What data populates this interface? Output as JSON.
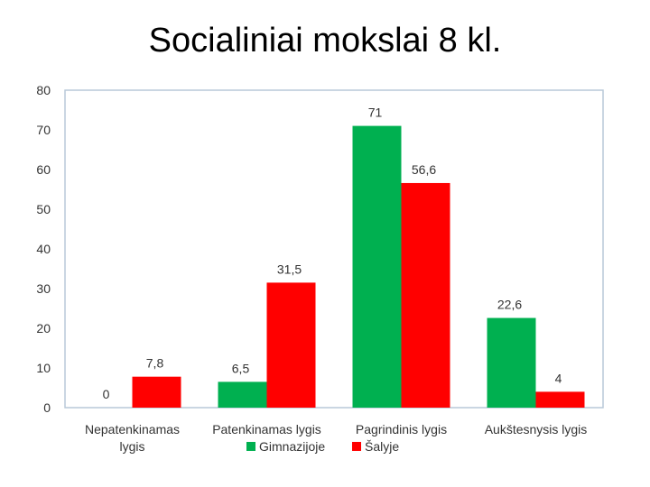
{
  "page": {
    "title": "Socialiniai mokslai 8 kl."
  },
  "chart_data": {
    "type": "bar",
    "title": "Socialiniai mokslai 8 kl.",
    "xlabel": "",
    "ylabel": "",
    "ylim": [
      0,
      80
    ],
    "yticks": [
      0,
      10,
      20,
      30,
      40,
      50,
      60,
      70,
      80
    ],
    "grid": false,
    "legend_position": "bottom",
    "categories": [
      [
        "Nepatenkinamas",
        "lygis"
      ],
      [
        "Patenkinamas lygis"
      ],
      [
        "Pagrindinis lygis"
      ],
      [
        "Aukštesnysis lygis"
      ]
    ],
    "series": [
      {
        "name": "Gimnazijoje",
        "color": "#00b050",
        "values": [
          0,
          6.5,
          71,
          22.6
        ],
        "labels": [
          "0",
          "6,5",
          "71",
          "22,6"
        ]
      },
      {
        "name": "Šalyje",
        "color": "#ff0000",
        "values": [
          7.8,
          31.5,
          56.6,
          4
        ],
        "labels": [
          "7,8",
          "31,5",
          "56,6",
          "4"
        ]
      }
    ]
  }
}
